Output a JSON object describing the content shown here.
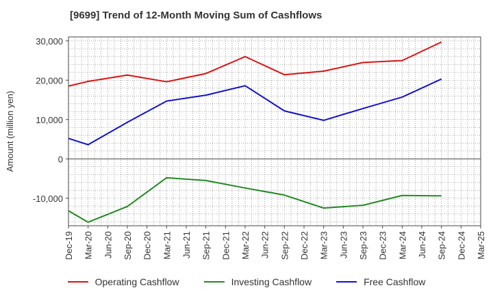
{
  "chart_data": {
    "type": "line",
    "title": "[9699]  Trend of 12-Month Moving Sum of Cashflows",
    "ylabel": "Amount (million yen)",
    "xlabel": "",
    "ylim": [
      -17000,
      31000
    ],
    "yticks": [
      30000,
      20000,
      10000,
      0,
      -10000
    ],
    "ytick_labels": [
      "30,000",
      "20,000",
      "10,000",
      "0",
      "-10,000"
    ],
    "categories": [
      "Dec-19",
      "Mar-20",
      "Jun-20",
      "Sep-20",
      "Dec-20",
      "Mar-21",
      "Jun-21",
      "Sep-21",
      "Dec-21",
      "Mar-22",
      "Jun-22",
      "Sep-22",
      "Dec-22",
      "Mar-23",
      "Jun-23",
      "Sep-23",
      "Dec-23",
      "Mar-24",
      "Jun-24",
      "Sep-24",
      "Dec-24",
      "Mar-25"
    ],
    "grid": true,
    "legend_position": "bottom",
    "series": [
      {
        "name": "Operating Cashflow",
        "color": "#dd1111",
        "x": [
          "Dec-19",
          "Mar-20",
          "Sep-20",
          "Mar-21",
          "Sep-21",
          "Mar-22",
          "Sep-22",
          "Mar-23",
          "Sep-23",
          "Mar-24",
          "Sep-24"
        ],
        "values": [
          18500,
          19700,
          21300,
          19600,
          21700,
          26000,
          21400,
          22300,
          24500,
          25000,
          29700
        ]
      },
      {
        "name": "Investing Cashflow",
        "color": "#228822",
        "x": [
          "Dec-19",
          "Mar-20",
          "Sep-20",
          "Mar-21",
          "Sep-21",
          "Mar-22",
          "Sep-22",
          "Mar-23",
          "Sep-23",
          "Mar-24",
          "Sep-24"
        ],
        "values": [
          -13200,
          -16100,
          -12100,
          -4800,
          -5500,
          -7400,
          -9200,
          -12500,
          -11800,
          -9300,
          -9400
        ]
      },
      {
        "name": "Free Cashflow",
        "color": "#1111cc",
        "x": [
          "Dec-19",
          "Mar-20",
          "Sep-20",
          "Mar-21",
          "Sep-21",
          "Mar-22",
          "Sep-22",
          "Mar-23",
          "Sep-23",
          "Mar-24",
          "Sep-24"
        ],
        "values": [
          5200,
          3600,
          9300,
          14700,
          16200,
          18600,
          12200,
          9800,
          12800,
          15700,
          20300
        ]
      }
    ]
  }
}
